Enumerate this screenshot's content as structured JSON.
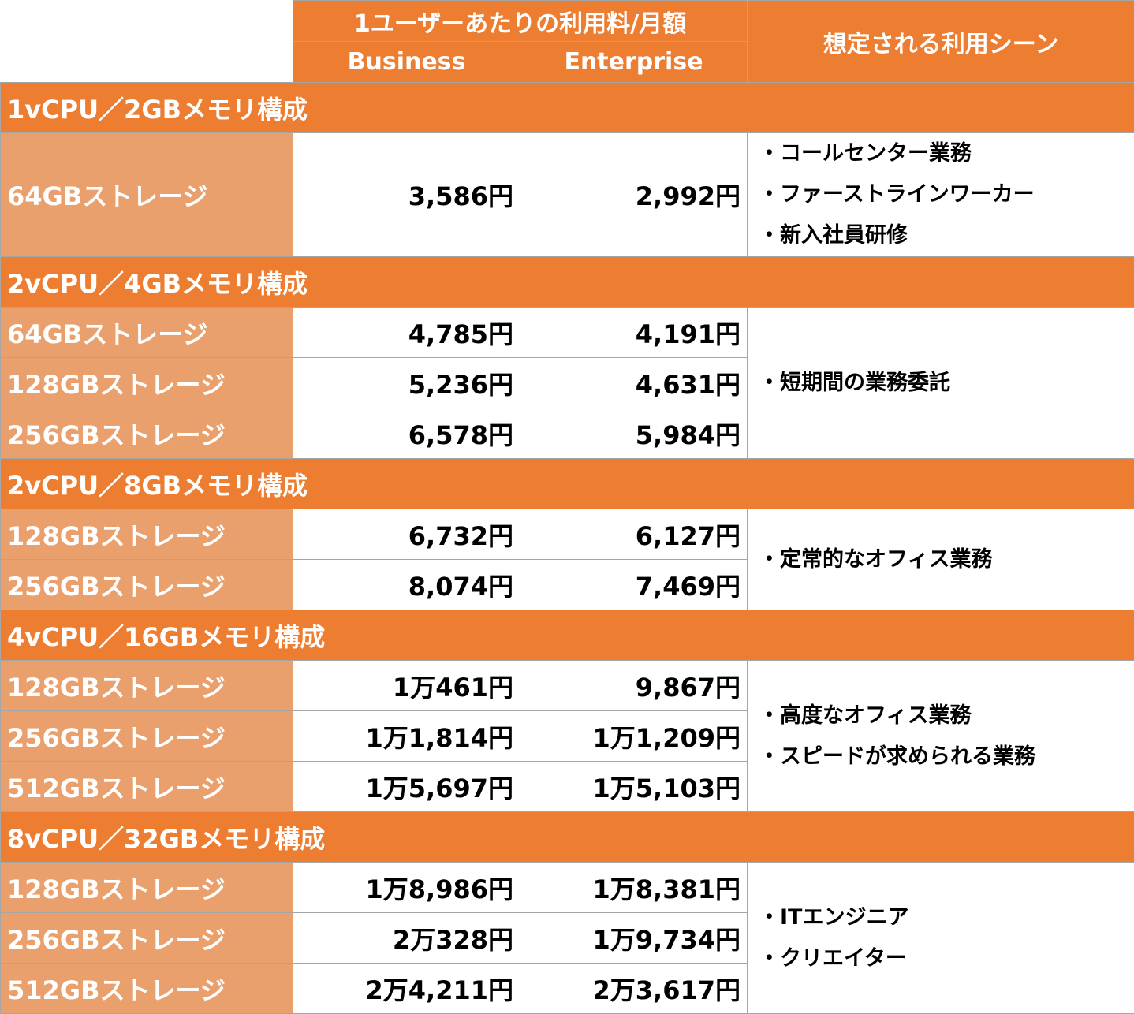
{
  "header": {
    "monthly_fee_label": "1ユーザーあたりの利用料/月額",
    "business_label": "Business",
    "enterprise_label": "Enterprise",
    "scene_label": "想定される利用シーン"
  },
  "groups": [
    {
      "title": "1vCPU／2GBメモリ構成",
      "rows": [
        {
          "storage": "64GBストレージ",
          "business": "3,586円",
          "enterprise": "2,992円"
        }
      ],
      "scenes": [
        "・コールセンター業務",
        "・ファーストラインワーカー",
        "・新入社員研修"
      ]
    },
    {
      "title": "2vCPU／4GBメモリ構成",
      "rows": [
        {
          "storage": "64GBストレージ",
          "business": "4,785円",
          "enterprise": "4,191円"
        },
        {
          "storage": "128GBストレージ",
          "business": "5,236円",
          "enterprise": "4,631円"
        },
        {
          "storage": "256GBストレージ",
          "business": "6,578円",
          "enterprise": "5,984円"
        }
      ],
      "scenes": [
        "・短期間の業務委託"
      ]
    },
    {
      "title": "2vCPU／8GBメモリ構成",
      "rows": [
        {
          "storage": "128GBストレージ",
          "business": "6,732円",
          "enterprise": "6,127円"
        },
        {
          "storage": "256GBストレージ",
          "business": "8,074円",
          "enterprise": "7,469円"
        }
      ],
      "scenes": [
        "・定常的なオフィス業務"
      ]
    },
    {
      "title": "4vCPU／16GBメモリ構成",
      "rows": [
        {
          "storage": "128GBストレージ",
          "business": "1万461円",
          "enterprise": "9,867円"
        },
        {
          "storage": "256GBストレージ",
          "business": "1万1,814円",
          "enterprise": "1万1,209円"
        },
        {
          "storage": "512GBストレージ",
          "business": "1万5,697円",
          "enterprise": "1万5,103円"
        }
      ],
      "scenes": [
        "・高度なオフィス業務",
        "・スピードが求められる業務"
      ]
    },
    {
      "title": "8vCPU／32GBメモリ構成",
      "rows": [
        {
          "storage": "128GBストレージ",
          "business": "1万8,986円",
          "enterprise": "1万8,381円"
        },
        {
          "storage": "256GBストレージ",
          "business": "2万328円",
          "enterprise": "1万9,734円"
        },
        {
          "storage": "512GBストレージ",
          "business": "2万4,211円",
          "enterprise": "2万3,617円"
        }
      ],
      "scenes": [
        "・ITエンジニア",
        "・クリエイター"
      ]
    }
  ]
}
